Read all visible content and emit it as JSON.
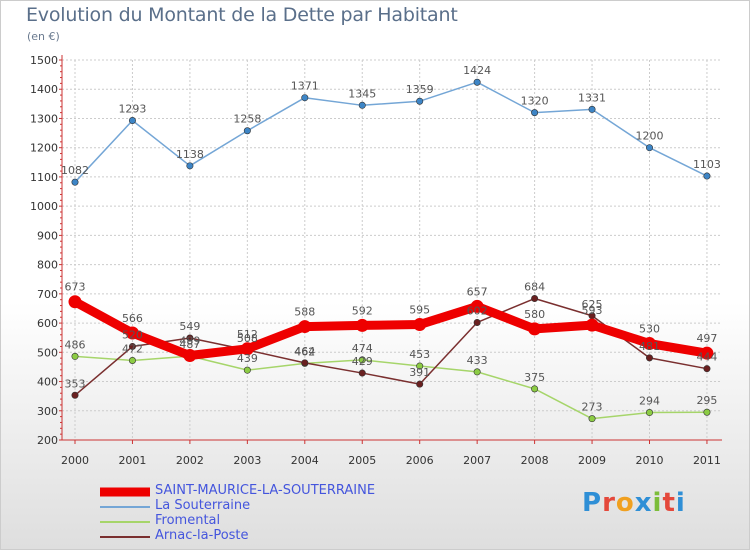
{
  "title": "Evolution du Montant de la Dette par Habitant",
  "subtitle": "(en €)",
  "logo": {
    "letters": [
      "P",
      "r",
      "o",
      "x",
      "i",
      "t",
      "i"
    ],
    "colors": [
      "#2f8fd6",
      "#e4483b",
      "#f0a020",
      "#2f8fd6",
      "#7cbd3a",
      "#e4483b",
      "#2f8fd6"
    ]
  },
  "chart_data": {
    "type": "line",
    "categories": [
      "2000",
      "2001",
      "2002",
      "2003",
      "2004",
      "2005",
      "2006",
      "2007",
      "2008",
      "2009",
      "2010",
      "2011"
    ],
    "ylim": [
      200,
      1500
    ],
    "yticks": [
      200,
      300,
      400,
      500,
      600,
      700,
      800,
      900,
      1000,
      1100,
      1200,
      1300,
      1400,
      1500
    ],
    "grid": true,
    "legend_position": "bottom-left",
    "series": [
      {
        "name": "La Souterraine",
        "color": "#74a6d6",
        "point_color": "#3d85c6",
        "values": [
          1082,
          1293,
          1138,
          1258,
          1371,
          1345,
          1359,
          1424,
          1320,
          1331,
          1200,
          1103
        ]
      },
      {
        "name": "Fromental",
        "color": "#a6d56a",
        "point_color": "#8ccc44",
        "values": [
          486,
          472,
          487,
          439,
          462,
          474,
          453,
          433,
          375,
          273,
          294,
          295
        ]
      },
      {
        "name": "Arnac-la-Poste",
        "color": "#7a2f2f",
        "point_color": "#6a2020",
        "values": [
          353,
          520,
          549,
          508,
          464,
          429,
          391,
          602,
          684,
          625,
          481,
          444
        ]
      },
      {
        "name": "SAINT-MAURICE-LA-SOUTERRAINE",
        "color": "#ee0000",
        "point_color": "#ee0000",
        "values": [
          673,
          566,
          489,
          512,
          588,
          592,
          595,
          657,
          580,
          593,
          530,
          497
        ],
        "thick": true
      }
    ],
    "legend_order": [
      "SAINT-MAURICE-LA-SOUTERRAINE",
      "La Souterraine",
      "Fromental",
      "Arnac-la-Poste"
    ]
  }
}
